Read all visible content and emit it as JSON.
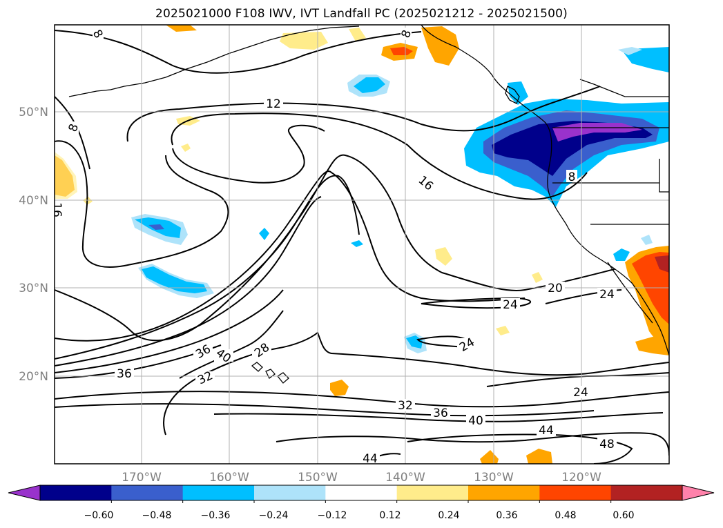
{
  "title": "2025021000 F108 IWV, IVT Landfall PC (2025021212 - 2025021500)",
  "lat_ticks": [
    "50°N",
    "40°N",
    "30°N",
    "20°N"
  ],
  "lon_ticks": [
    "170°W",
    "160°W",
    "150°W",
    "140°W",
    "130°W",
    "120°W"
  ],
  "contour_labels": [
    "8",
    "8",
    "8",
    "8",
    "12",
    "16",
    "16",
    "20",
    "24",
    "24",
    "24",
    "24",
    "28",
    "32",
    "32",
    "36",
    "36",
    "36",
    "40",
    "40",
    "44",
    "44",
    "48"
  ],
  "colorbar": {
    "tick_labels": [
      "−0.60",
      "−0.48",
      "−0.36",
      "−0.24",
      "−0.12",
      "0.12",
      "0.24",
      "0.36",
      "0.48",
      "0.60"
    ],
    "colors": [
      "#9932cc",
      "#00008b",
      "#3a5fcd",
      "#00bfff",
      "#aee3fa",
      "#ffffff",
      "#ffec8b",
      "#ffa500",
      "#ff4500",
      "#b22222",
      "#ff82ab"
    ]
  }
}
